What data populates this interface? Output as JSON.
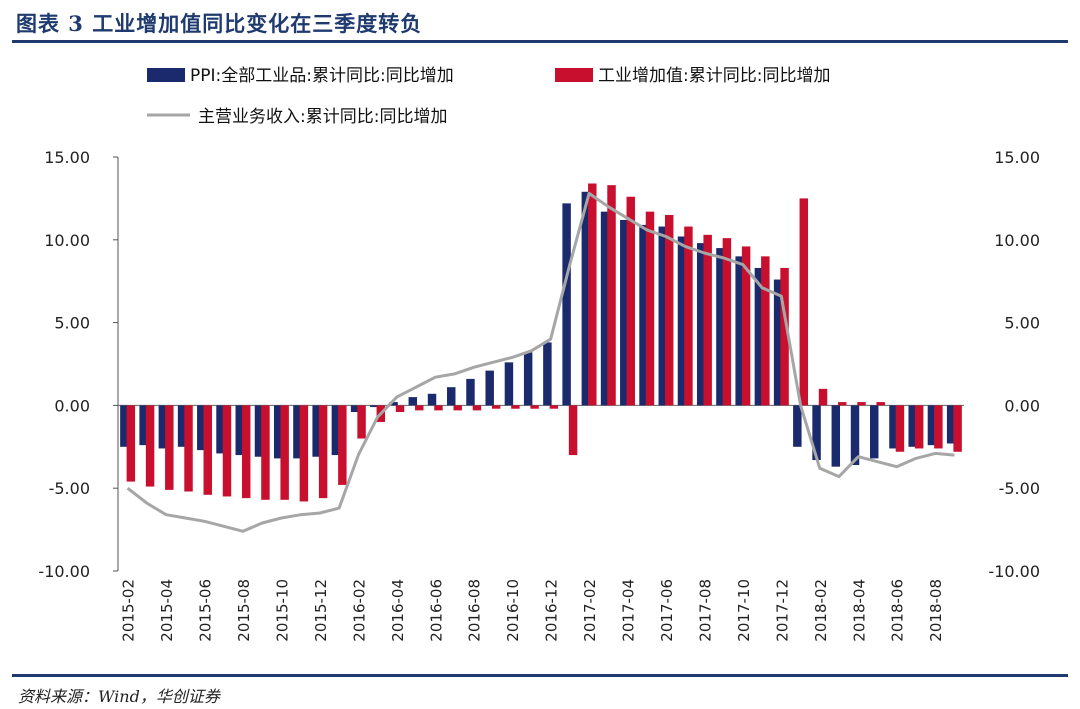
{
  "header": {
    "title": "图表 3   工业增加值同比变化在三季度转负"
  },
  "source": "资料来源：Wind，华创证券",
  "colors": {
    "series1": "#1a2a6c",
    "series2": "#c8102e",
    "series3": "#a6a6a6",
    "title": "#1f3a6e"
  },
  "chart_data": {
    "type": "bar",
    "title": "工业增加值同比变化在三季度转负",
    "xlabel": "",
    "ylabel": "",
    "ylim": [
      -10,
      15
    ],
    "y_ticks": [
      "15.00",
      "10.00",
      "5.00",
      "0.00",
      "-5.00",
      "-10.00"
    ],
    "y_ticks_right": [
      "15.00",
      "10.00",
      "5.00",
      "0.00",
      "-5.00",
      "-10.00"
    ],
    "x_tick_labels": [
      "2015-02",
      "2015-04",
      "2015-06",
      "2015-08",
      "2015-10",
      "2015-12",
      "2016-02",
      "2016-04",
      "2016-06",
      "2016-08",
      "2016-10",
      "2016-12",
      "2017-02",
      "2017-04",
      "2017-06",
      "2017-08",
      "2017-10",
      "2017-12",
      "2018-02",
      "2018-04",
      "2018-06",
      "2018-08"
    ],
    "categories": [
      "2015-02",
      "2015-03",
      "2015-04",
      "2015-05",
      "2015-06",
      "2015-07",
      "2015-08",
      "2015-09",
      "2015-10",
      "2015-11",
      "2015-12",
      "2016-01",
      "2016-02",
      "2016-03",
      "2016-04",
      "2016-05",
      "2016-06",
      "2016-07",
      "2016-08",
      "2016-09",
      "2016-10",
      "2016-11",
      "2016-12",
      "2017-01",
      "2017-02",
      "2017-03",
      "2017-04",
      "2017-05",
      "2017-06",
      "2017-07",
      "2017-08",
      "2017-09",
      "2017-10",
      "2017-11",
      "2017-12",
      "2018-01",
      "2018-02",
      "2018-03",
      "2018-04",
      "2018-05",
      "2018-06",
      "2018-07",
      "2018-08",
      "2018-09"
    ],
    "legend": {
      "placement": "top"
    },
    "series": [
      {
        "name": "PPI:全部工业品:累计同比:同比增加",
        "kind": "bar",
        "values": [
          -2.5,
          -2.4,
          -2.6,
          -2.5,
          -2.7,
          -2.9,
          -3.0,
          -3.1,
          -3.2,
          -3.2,
          -3.1,
          -3.0,
          -0.4,
          -0.1,
          0.2,
          0.5,
          0.7,
          1.1,
          1.6,
          2.1,
          2.6,
          3.2,
          3.8,
          12.2,
          12.9,
          11.7,
          11.2,
          10.9,
          10.8,
          10.2,
          9.8,
          9.5,
          9.0,
          8.3,
          7.6,
          -2.5,
          -3.3,
          -3.7,
          -3.6,
          -3.2,
          -2.6,
          -2.5,
          -2.4,
          -2.3
        ]
      },
      {
        "name": "工业增加值:累计同比:同比增加",
        "kind": "bar",
        "values": [
          -4.6,
          -4.9,
          -5.1,
          -5.2,
          -5.4,
          -5.5,
          -5.6,
          -5.7,
          -5.7,
          -5.8,
          -5.6,
          -4.8,
          -2.0,
          -1.0,
          -0.4,
          -0.3,
          -0.3,
          -0.3,
          -0.3,
          -0.2,
          -0.2,
          -0.2,
          -0.2,
          -3.0,
          13.4,
          13.3,
          12.6,
          11.7,
          11.5,
          10.8,
          10.3,
          10.1,
          9.6,
          9.0,
          8.3,
          12.5,
          1.0,
          0.2,
          0.2,
          0.2,
          -2.8,
          -2.6,
          -2.6,
          -2.8
        ]
      },
      {
        "name": "主营业务收入:累计同比:同比增加",
        "kind": "line",
        "values": [
          -5.0,
          -5.9,
          -6.6,
          -6.8,
          -7.0,
          -7.3,
          -7.6,
          -7.1,
          -6.8,
          -6.6,
          -6.5,
          -6.2,
          -3.0,
          -0.7,
          0.5,
          1.1,
          1.7,
          1.9,
          2.3,
          2.6,
          2.9,
          3.3,
          4.0,
          8.5,
          12.8,
          12.0,
          11.3,
          10.6,
          10.2,
          9.6,
          9.2,
          8.9,
          8.5,
          7.1,
          6.6,
          0,
          -3.8,
          -4.3,
          -3.1,
          -3.4,
          -3.7,
          -3.2,
          -2.9,
          -3.0
        ]
      }
    ]
  }
}
